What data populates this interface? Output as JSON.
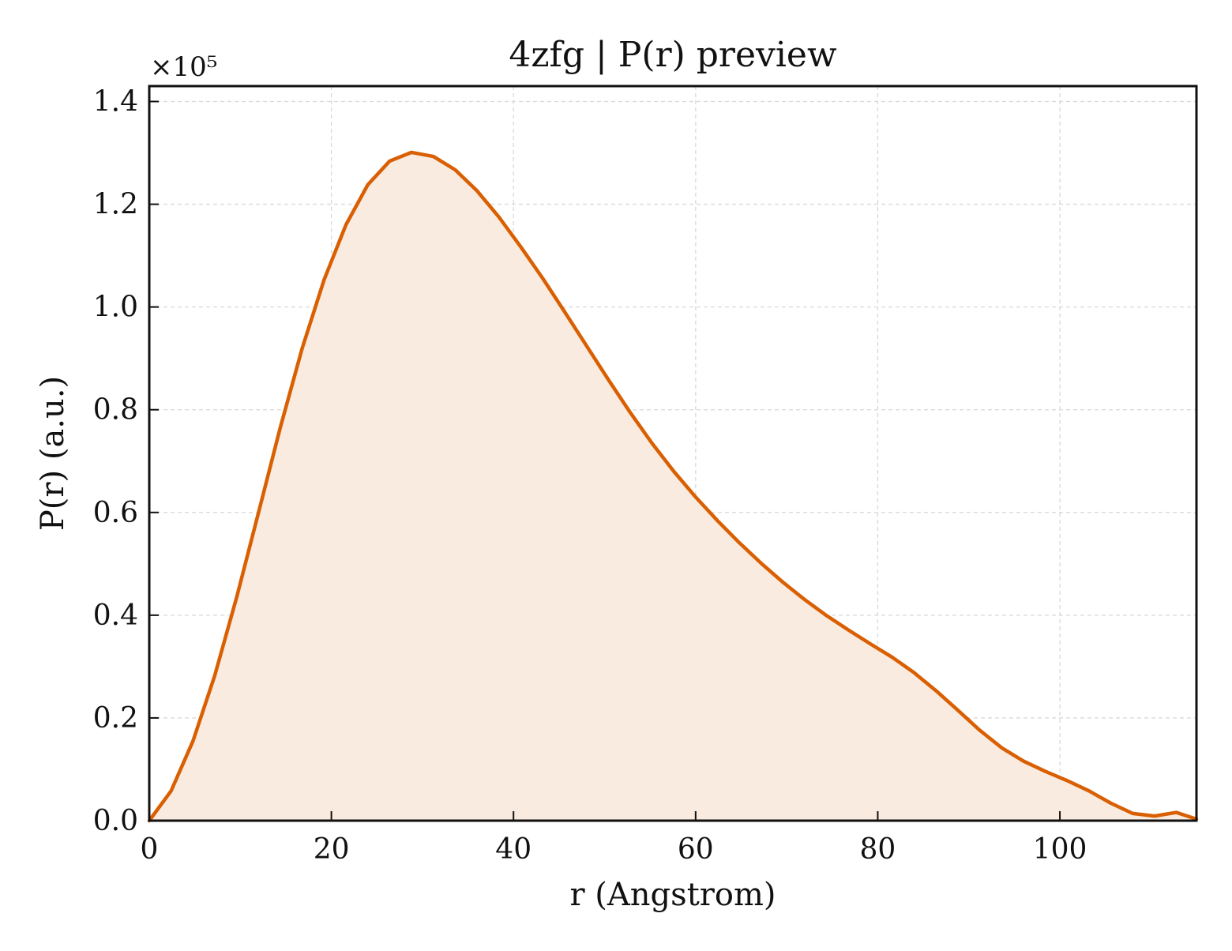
{
  "chart_data": {
    "type": "area",
    "title": "4zfg | P(r) preview",
    "xlabel": "r (Angstrom)",
    "ylabel": "P(r) (a.u.)",
    "y_multiplier_label": "×10⁵",
    "xlim": [
      0,
      115
    ],
    "ylim": [
      0,
      1.43
    ],
    "x_ticks": [
      0,
      20,
      40,
      60,
      80,
      100
    ],
    "y_ticks": [
      0.0,
      0.2,
      0.4,
      0.6,
      0.8,
      1.0,
      1.2,
      1.4
    ],
    "x_tick_labels": [
      "0",
      "20",
      "40",
      "60",
      "80",
      "100"
    ],
    "y_tick_labels": [
      "0.0",
      "0.2",
      "0.4",
      "0.6",
      "0.8",
      "1.0",
      "1.2",
      "1.4"
    ],
    "grid": true,
    "colors": {
      "line": "#d95f02",
      "fill": "#f9ebe0",
      "grid": "#d9d9d9"
    },
    "series": [
      {
        "x": [
          0,
          2.4,
          4.8,
          7.2,
          9.6,
          12.0,
          14.4,
          16.8,
          19.2,
          21.6,
          24.0,
          26.4,
          28.8,
          31.2,
          33.6,
          36.0,
          38.4,
          40.8,
          43.2,
          45.6,
          48.0,
          50.4,
          52.8,
          55.2,
          57.6,
          60.0,
          62.4,
          64.8,
          67.2,
          69.6,
          72.0,
          74.4,
          76.8,
          79.2,
          81.6,
          84.0,
          86.4,
          88.8,
          91.2,
          93.6,
          96.0,
          98.4,
          100.8,
          103.2,
          105.6,
          108.0,
          110.4,
          112.8,
          115.0
        ],
        "y": [
          0.0,
          0.058,
          0.155,
          0.283,
          0.435,
          0.6,
          0.766,
          0.92,
          1.053,
          1.16,
          1.238,
          1.284,
          1.301,
          1.293,
          1.267,
          1.226,
          1.175,
          1.117,
          1.056,
          0.991,
          0.925,
          0.859,
          0.795,
          0.735,
          0.68,
          0.63,
          0.584,
          0.541,
          0.501,
          0.464,
          0.43,
          0.399,
          0.371,
          0.344,
          0.318,
          0.288,
          0.253,
          0.215,
          0.176,
          0.142,
          0.116,
          0.096,
          0.078,
          0.058,
          0.034,
          0.014,
          0.009,
          0.016,
          0.003
        ]
      }
    ]
  }
}
